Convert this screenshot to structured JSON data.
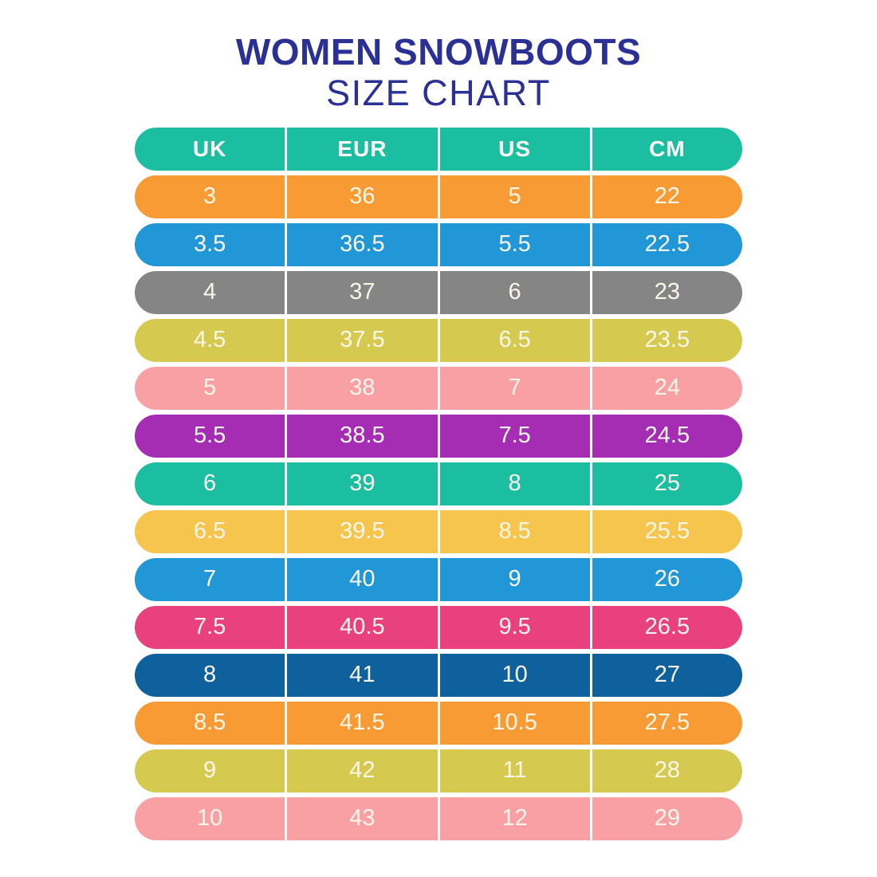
{
  "title": {
    "line1": "WOMEN SNOWBOOTS",
    "line2": "SIZE CHART",
    "color": "#2B3094"
  },
  "chart_data": {
    "type": "table",
    "title": "WOMEN SNOWBOOTS SIZE CHART",
    "columns": [
      "UK",
      "EUR",
      "US",
      "CM"
    ],
    "rows": [
      [
        "3",
        "36",
        "5",
        "22"
      ],
      [
        "3.5",
        "36.5",
        "5.5",
        "22.5"
      ],
      [
        "4",
        "37",
        "6",
        "23"
      ],
      [
        "4.5",
        "37.5",
        "6.5",
        "23.5"
      ],
      [
        "5",
        "38",
        "7",
        "24"
      ],
      [
        "5.5",
        "38.5",
        "7.5",
        "24.5"
      ],
      [
        "6",
        "39",
        "8",
        "25"
      ],
      [
        "6.5",
        "39.5",
        "8.5",
        "25.5"
      ],
      [
        "7",
        "40",
        "9",
        "26"
      ],
      [
        "7.5",
        "40.5",
        "9.5",
        "26.5"
      ],
      [
        "8",
        "41",
        "10",
        "27"
      ],
      [
        "8.5",
        "41.5",
        "10.5",
        "27.5"
      ],
      [
        "9",
        "42",
        "11",
        "28"
      ],
      [
        "10",
        "43",
        "12",
        "29"
      ]
    ],
    "header_color": "#1CBEA1",
    "row_colors": [
      "#F89B35",
      "#2197D7",
      "#858585",
      "#D5C950",
      "#F9A0A5",
      "#A52DB4",
      "#1CBEA1",
      "#F5C54E",
      "#2197D7",
      "#E8417E",
      "#0F619D",
      "#F89B35",
      "#D5C950",
      "#F9A0A5"
    ],
    "cell_text_color": "#FBF7EA",
    "divider_color": "#FFFFFF"
  }
}
